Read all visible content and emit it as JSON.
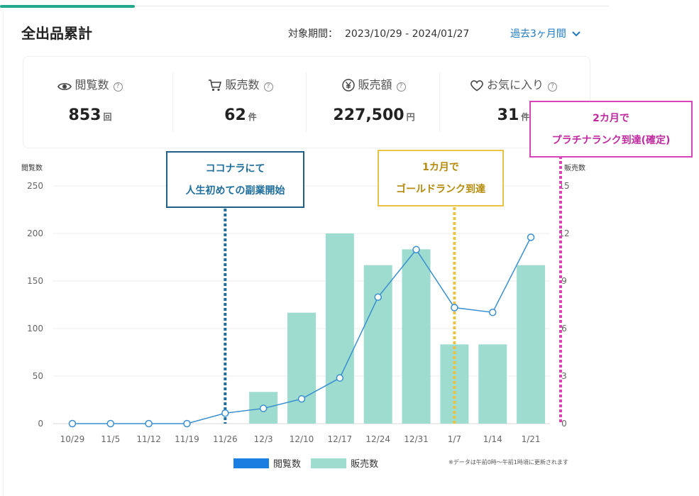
{
  "header": {
    "title": "全出品累計",
    "period_label": "対象期間：",
    "period_value": "2023/10/29 - 2024/01/27",
    "range_select": "過去3ヶ月間"
  },
  "stats": [
    {
      "label": "閲覧数",
      "value": "853",
      "unit": "回",
      "icon": "eye-icon"
    },
    {
      "label": "販売数",
      "value": "62",
      "unit": "件",
      "icon": "cart-icon"
    },
    {
      "label": "販売額",
      "value": "227,500",
      "unit": "円",
      "icon": "yen-icon"
    },
    {
      "label": "お気に入り",
      "value": "31",
      "unit": "件",
      "icon": "heart-icon"
    }
  ],
  "callouts": {
    "start": {
      "line1": "ココナラにて",
      "line2": "人生初めての副業開始",
      "color": "#1f5e86"
    },
    "gold": {
      "line1": "1カ月で",
      "line2": "ゴールドランク到達",
      "color": "#e8c344"
    },
    "platinum": {
      "line1": "2カ月で",
      "line2": "プラチナランク到達(確定)",
      "color": "#d944b9"
    }
  },
  "legend": {
    "views": "閲覧数",
    "sales": "販売数"
  },
  "note": "※データは午前0時〜午前1時頃に更新されます",
  "colors": {
    "line": "#3a8fd0",
    "bar": "#9edcd0",
    "views_legend": "#1a7fe0",
    "accent": "#23a98e"
  },
  "chart_data": {
    "type": "bar",
    "categories": [
      "10/29",
      "11/5",
      "11/12",
      "11/19",
      "11/26",
      "12/3",
      "12/10",
      "12/17",
      "12/24",
      "12/31",
      "1/7",
      "1/14",
      "1/21"
    ],
    "series": [
      {
        "name": "閲覧数",
        "type": "line",
        "axis": "left",
        "values": [
          0,
          0,
          0,
          0,
          11,
          16,
          26,
          48,
          133,
          183,
          122,
          117,
          196
        ]
      },
      {
        "name": "販売数",
        "type": "bar",
        "axis": "right",
        "values": [
          0,
          0,
          0,
          0,
          0,
          2,
          7,
          12,
          10,
          11,
          5,
          5,
          10
        ]
      }
    ],
    "ylabel_left": "閲覧数",
    "ylabel_right": "販売数",
    "ylim_left": [
      0,
      250
    ],
    "ylim_right": [
      0,
      15
    ],
    "yticks_left": [
      0,
      50,
      100,
      150,
      200,
      250
    ],
    "yticks_right": [
      0,
      3,
      6,
      9,
      12,
      15
    ],
    "markers": [
      {
        "category": "11/26",
        "color": "#1f6e9c"
      },
      {
        "category": "1/7",
        "color": "#e8c344"
      },
      {
        "category": "right-edge",
        "color": "#d944b9"
      }
    ],
    "grid": true
  }
}
